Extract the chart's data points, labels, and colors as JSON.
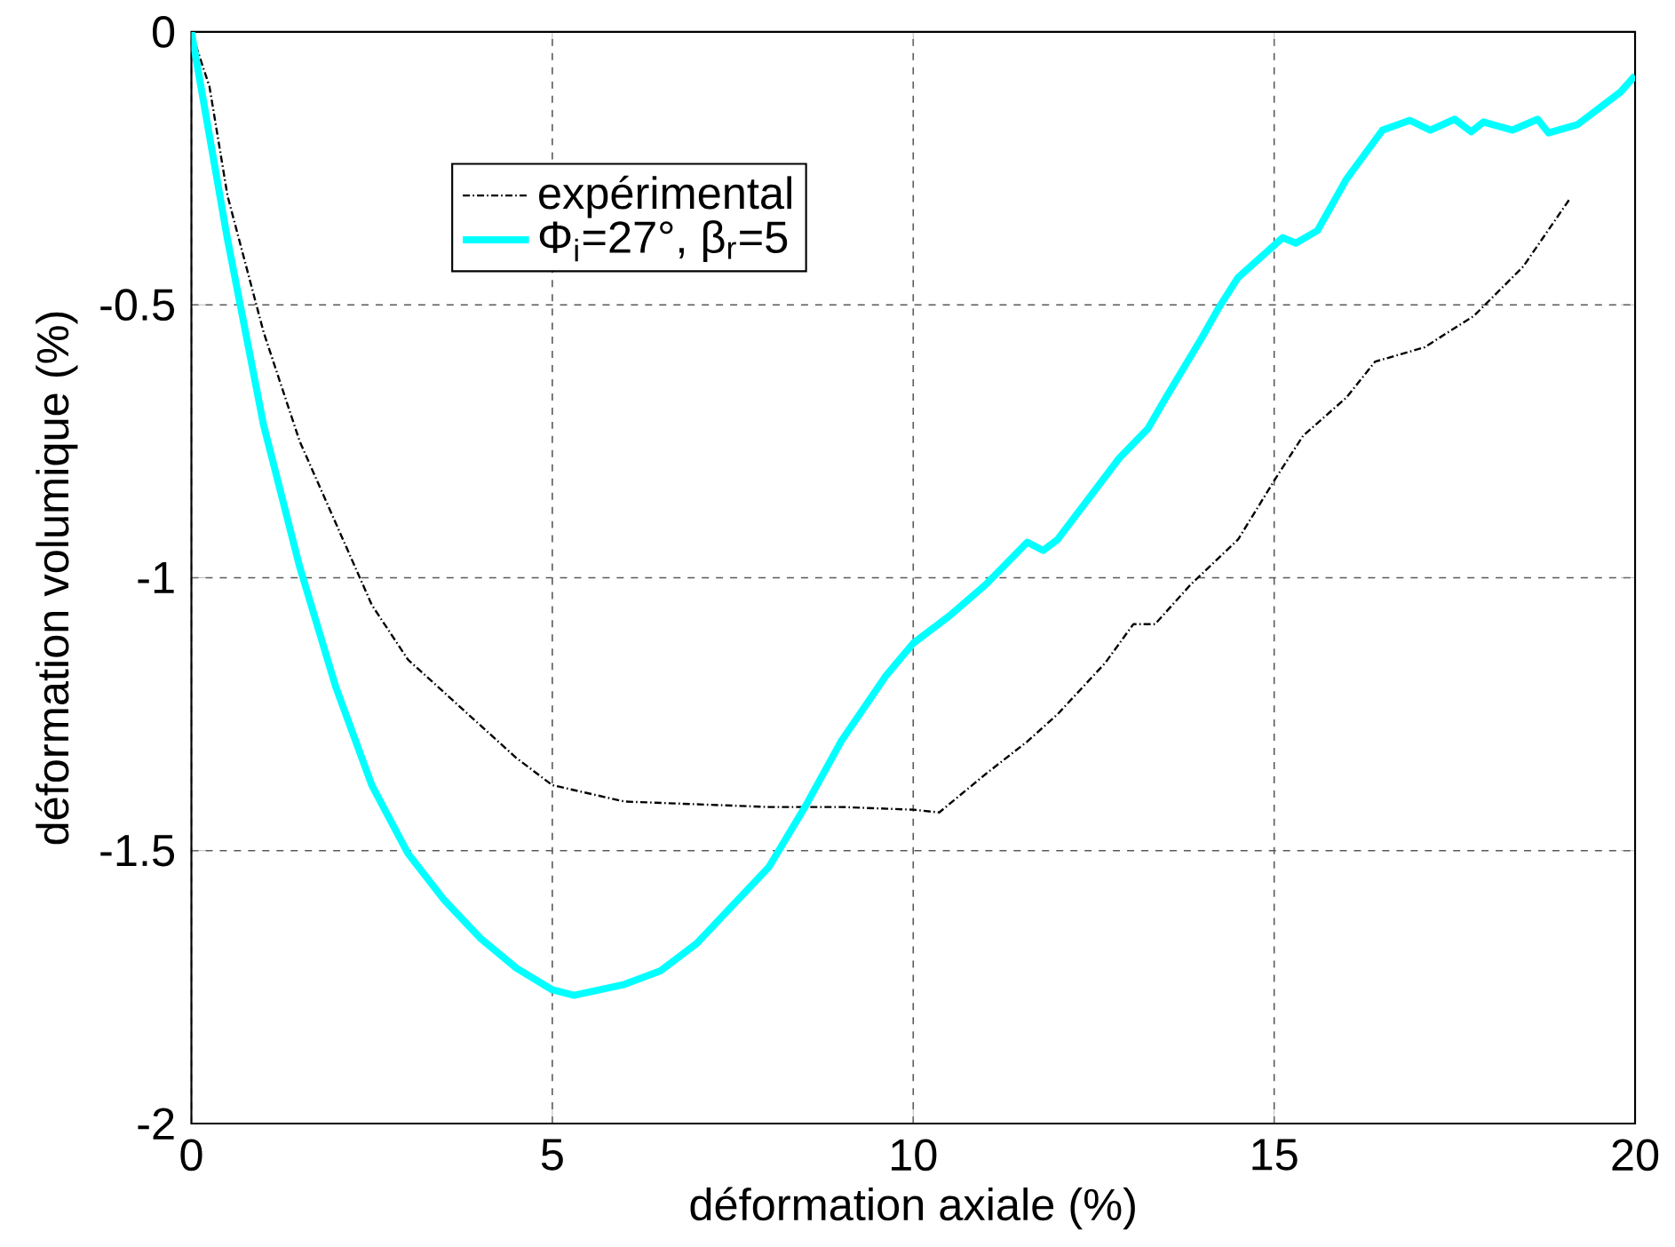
{
  "chart_data": {
    "type": "line",
    "xlabel": "déformation axiale (%)",
    "ylabel": "déformation volumique (%)",
    "xlim": [
      0,
      20
    ],
    "ylim": [
      -2,
      0
    ],
    "xticks": [
      0,
      5,
      10,
      15,
      20
    ],
    "yticks": [
      -2,
      -1.5,
      -1,
      -0.5,
      0
    ],
    "grid": true,
    "legend": "top left",
    "series": [
      {
        "name": "expérimental",
        "color": "#000000",
        "line_style": "dashdot",
        "x": [
          0,
          0.25,
          0.5,
          1,
          1.5,
          2,
          2.5,
          3,
          4,
          4.5,
          5,
          6,
          7,
          8,
          9,
          10,
          10.36,
          11,
          11.58,
          12,
          12.66,
          13.05,
          13.35,
          13.84,
          14.5,
          15.02,
          15.4,
          16,
          16.4,
          17.08,
          17.77,
          18.45,
          19.1
        ],
        "values": [
          0,
          -0.1,
          -0.3,
          -0.55,
          -0.75,
          -0.9,
          -1.05,
          -1.15,
          -1.27,
          -1.33,
          -1.38,
          -1.41,
          -1.415,
          -1.42,
          -1.42,
          -1.425,
          -1.43,
          -1.36,
          -1.3,
          -1.25,
          -1.156,
          -1.085,
          -1.085,
          -1.013,
          -0.93,
          -0.818,
          -0.74,
          -0.67,
          -0.604,
          -0.578,
          -0.52,
          -0.43,
          -0.305
        ]
      },
      {
        "name": "Φ$_{i}$=27°, β$_{r}$=5",
        "color": "#00ffff",
        "line_style": "solid",
        "x": [
          0,
          0.5,
          1,
          1.5,
          2,
          2.5,
          3,
          3.5,
          4,
          4.5,
          5,
          5.3,
          6,
          6.5,
          7,
          7.5,
          8,
          8.5,
          9,
          9.62,
          10,
          10.5,
          11,
          11.58,
          11.8,
          12,
          12.86,
          13.25,
          13.5,
          14,
          14.23,
          14.5,
          15.12,
          15.3,
          15.6,
          16,
          16.5,
          16.88,
          17.16,
          17.5,
          17.73,
          17.9,
          18.3,
          18.65,
          18.8,
          19.2,
          19.8,
          20
        ],
        "values": [
          0,
          -0.38,
          -0.72,
          -0.98,
          -1.2,
          -1.38,
          -1.505,
          -1.59,
          -1.66,
          -1.715,
          -1.755,
          -1.765,
          -1.745,
          -1.72,
          -1.67,
          -1.6,
          -1.53,
          -1.42,
          -1.3,
          -1.18,
          -1.12,
          -1.07,
          -1.013,
          -0.935,
          -0.95,
          -0.93,
          -0.78,
          -0.727,
          -0.67,
          -0.56,
          -0.506,
          -0.45,
          -0.377,
          -0.387,
          -0.364,
          -0.27,
          -0.18,
          -0.162,
          -0.18,
          -0.16,
          -0.183,
          -0.165,
          -0.18,
          -0.16,
          -0.185,
          -0.17,
          -0.11,
          -0.08
        ]
      }
    ]
  }
}
